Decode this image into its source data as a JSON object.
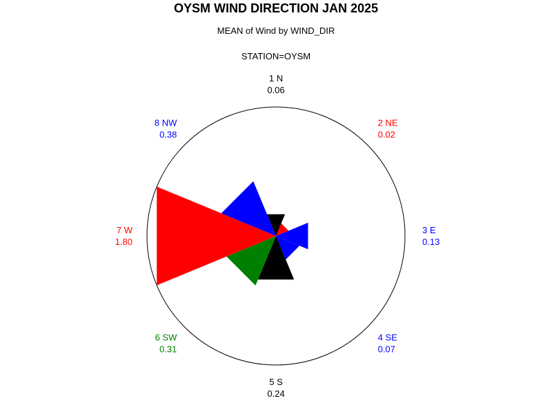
{
  "chart_data": {
    "type": "radial-bar",
    "title": "OYSM WIND DIRECTION JAN 2025",
    "subtitle": "MEAN of Wind by WIND_DIR",
    "station": "STATION=OYSM",
    "max_value": 1.8,
    "categories": [
      {
        "id": "1 N",
        "value": 0.06,
        "value_label": "0.06",
        "angle_deg": 0,
        "color": "#000000"
      },
      {
        "id": "2 NE",
        "value": 0.02,
        "value_label": "0.02",
        "angle_deg": 45,
        "color": "#ff0000"
      },
      {
        "id": "3 E",
        "value": 0.13,
        "value_label": "0.13",
        "angle_deg": 90,
        "color": "#0000ff"
      },
      {
        "id": "4 SE",
        "value": 0.07,
        "value_label": "0.07",
        "angle_deg": 135,
        "color": "#0000ff"
      },
      {
        "id": "5 S",
        "value": 0.24,
        "value_label": "0.24",
        "angle_deg": 180,
        "color": "#000000"
      },
      {
        "id": "6 SW",
        "value": 0.31,
        "value_label": "0.31",
        "angle_deg": 225,
        "color": "#008000"
      },
      {
        "id": "7 W",
        "value": 1.8,
        "value_label": "1.80",
        "angle_deg": 270,
        "color": "#ff0000"
      },
      {
        "id": "8 NW",
        "value": 0.38,
        "value_label": "0.38",
        "angle_deg": 315,
        "color": "#0000ff"
      }
    ]
  }
}
